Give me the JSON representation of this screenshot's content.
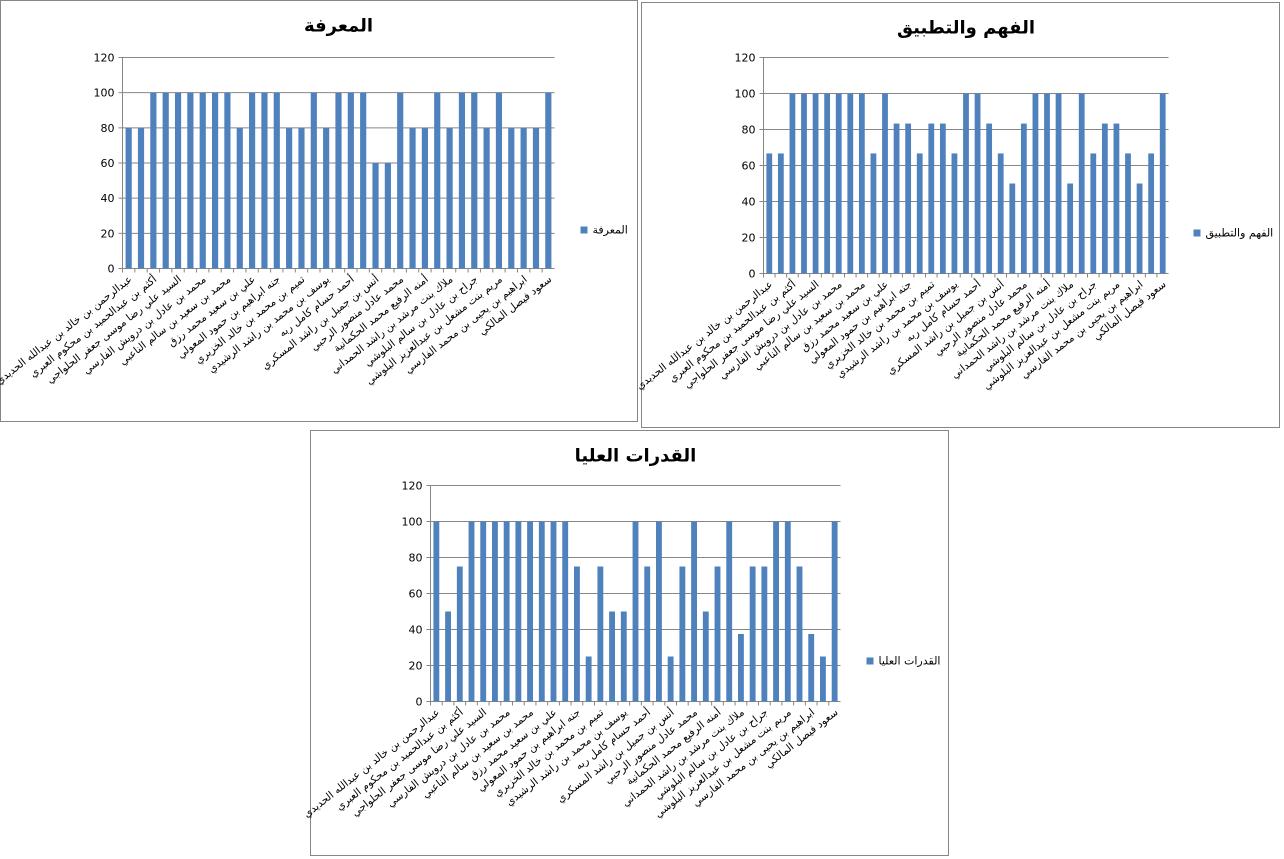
{
  "chart_data": [
    {
      "type": "bar",
      "title": "المعرفة",
      "categories": [
        "عبدالرحمن بن خالد بن عبدالله الحديدي",
        null,
        "أكثم بن عبدالحميد بن محكوم العبري",
        null,
        "السيد علي رضا موسى جعفر الحلواجي",
        null,
        "محمد بن عادل بن درويش الفارسي",
        null,
        "محمد بن سعيد بن سالم الناعبي",
        null,
        "علي بن سعيد محمد رزق",
        null,
        "جنه ابراهيم بن حمود المعولي",
        null,
        "تميم بن محمد بن خالد الخزيري",
        null,
        "يوسف بن محمد بن راشد الرشيدي",
        null,
        "أحمد حسام كامل ربه",
        null,
        "أنس بن جميل بن راشد المسكري",
        null,
        "محمد عادل منصور الرحبي",
        null,
        "أمنه الرفيع محمد الحكمانية",
        null,
        "ملاك بنت مرشد بن راشد الحمداني",
        null,
        "جراح بن عادل بن سالم البلوشي",
        null,
        "مريم بنت مشعل بن عبدالعزيز البلوشي",
        null,
        "ابراهيم بن يحيى بن محمد الفارسي",
        null,
        "سعود فيصل المالكي"
      ],
      "series": [
        {
          "name": "المعرفة",
          "color": "#4f81bd",
          "values": [
            80,
            80,
            100,
            100,
            100,
            100,
            100,
            100,
            100,
            80,
            100,
            100,
            100,
            80,
            80,
            100,
            80,
            100,
            100,
            100,
            60,
            60,
            100,
            80,
            80,
            100,
            80,
            100,
            100,
            80,
            100,
            80,
            80,
            80,
            100
          ]
        }
      ],
      "ylim": [
        0,
        120
      ],
      "yticks": [
        0,
        20,
        40,
        60,
        80,
        100,
        120
      ],
      "grid": true,
      "legend": "right"
    },
    {
      "type": "bar",
      "title": "الفهم والتطبيق",
      "categories": [
        "عبدالرحمن بن خالد بن عبدالله الحديدي",
        null,
        "أكثم بن عبدالحميد بن محكوم العبري",
        null,
        "السيد علي رضا موسى جعفر الحلواجي",
        null,
        "محمد بن عادل بن درويش الفارسي",
        null,
        "محمد بن سعيد بن سالم الناعبي",
        null,
        "علي بن سعيد محمد رزق",
        null,
        "جنه ابراهيم بن حمود المعولي",
        null,
        "تميم بن محمد بن خالد الخزيري",
        null,
        "يوسف بن محمد بن راشد الرشيدي",
        null,
        "أحمد حسام كامل ربه",
        null,
        "أنس بن جميل بن راشد المسكري",
        null,
        "محمد عادل منصور الرحبي",
        null,
        "أمنه الرفيع محمد الحكمانية",
        null,
        "ملاك بنت مرشد بن راشد الحمداني",
        null,
        "جراح بن عادل بن سالم البلوشي",
        null,
        "مريم بنت مشعل بن عبدالعزيز البلوشي",
        null,
        "ابراهيم بن يحيى بن محمد الفارسي",
        null,
        "سعود فيصل المالكي"
      ],
      "series": [
        {
          "name": "الفهم والتطبيق",
          "color": "#4f81bd",
          "values": [
            66.7,
            66.7,
            100,
            100,
            100,
            100,
            100,
            100,
            100,
            66.7,
            100,
            83.3,
            83.3,
            66.7,
            83.3,
            83.3,
            66.7,
            100,
            100,
            83.3,
            66.7,
            50,
            83.3,
            100,
            100,
            100,
            50,
            100,
            66.7,
            83.3,
            83.3,
            66.7,
            50,
            66.7,
            100
          ]
        }
      ],
      "ylim": [
        0,
        120
      ],
      "yticks": [
        0,
        20,
        40,
        60,
        80,
        100,
        120
      ],
      "grid": true,
      "legend": "right"
    },
    {
      "type": "bar",
      "title": "القدرات العليا",
      "categories": [
        "عبدالرحمن بن خالد بن عبدالله الحديدي",
        null,
        "أكثم بن عبدالحميد بن محكوم العبري",
        null,
        "السيد علي رضا موسى جعفر الحلواجي",
        null,
        "محمد بن عادل بن درويش الفارسي",
        null,
        "محمد بن سعيد بن سالم الناعبي",
        null,
        "علي بن سعيد محمد رزق",
        null,
        "جنه ابراهيم بن حمود المعولي",
        null,
        "تميم بن محمد بن خالد الخزيري",
        null,
        "يوسف بن محمد بن راشد الرشيدي",
        null,
        "أحمد حسام كامل ربه",
        null,
        "أنس بن جميل بن راشد المسكري",
        null,
        "محمد عادل منصور الرحبي",
        null,
        "أمنه الرفيع محمد الحكمانية",
        null,
        "ملاك بنت مرشد بن راشد الحمداني",
        null,
        "جراح بن عادل بن سالم البلوشي",
        null,
        "مريم بنت مشعل بن عبدالعزيز البلوشي",
        null,
        "ابراهيم بن يحيى بن محمد الفارسي",
        null,
        "سعود فيصل المالكي"
      ],
      "series": [
        {
          "name": "القدرات العليا",
          "color": "#4f81bd",
          "values": [
            100,
            50,
            75,
            100,
            100,
            100,
            100,
            100,
            100,
            100,
            100,
            100,
            75,
            25,
            75,
            50,
            50,
            100,
            75,
            100,
            25,
            75,
            100,
            50,
            75,
            100,
            37.5,
            75,
            75,
            100,
            100,
            75,
            37.5,
            25,
            100
          ]
        }
      ],
      "ylim": [
        0,
        120
      ],
      "yticks": [
        0,
        20,
        40,
        60,
        80,
        100,
        120
      ],
      "grid": true,
      "legend": "right"
    }
  ]
}
